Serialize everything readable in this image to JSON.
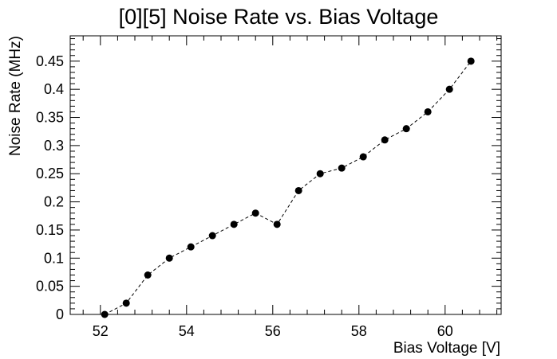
{
  "chart_data": {
    "type": "scatter",
    "title": "[0][5] Noise Rate vs. Bias Voltage",
    "xlabel": "Bias Voltage [V]",
    "ylabel": "Noise Rate (MHz)",
    "xlim": [
      51.3,
      61.3
    ],
    "ylim": [
      0,
      0.495
    ],
    "x_ticks": [
      52,
      54,
      56,
      58,
      60
    ],
    "x_tick_labels": [
      "52",
      "54",
      "56",
      "58",
      "60"
    ],
    "y_ticks": [
      0,
      0.05,
      0.1,
      0.15,
      0.2,
      0.25,
      0.3,
      0.35,
      0.4,
      0.45
    ],
    "y_tick_labels": [
      "0",
      "0.05",
      "0.1",
      "0.15",
      "0.2",
      "0.25",
      "0.3",
      "0.35",
      "0.4",
      "0.45"
    ],
    "line_style": "dashed",
    "marker": "filled-circle",
    "grid": false,
    "series": [
      {
        "x": [
          52.1,
          52.6,
          53.1,
          53.6,
          54.1,
          54.6,
          55.1,
          55.6,
          56.1,
          56.6,
          57.1,
          57.6,
          58.1,
          58.6,
          59.1,
          59.6,
          60.1,
          60.6
        ],
        "y": [
          0.0,
          0.02,
          0.07,
          0.1,
          0.12,
          0.14,
          0.16,
          0.18,
          0.16,
          0.22,
          0.25,
          0.26,
          0.28,
          0.31,
          0.33,
          0.36,
          0.4,
          0.45
        ]
      }
    ]
  }
}
